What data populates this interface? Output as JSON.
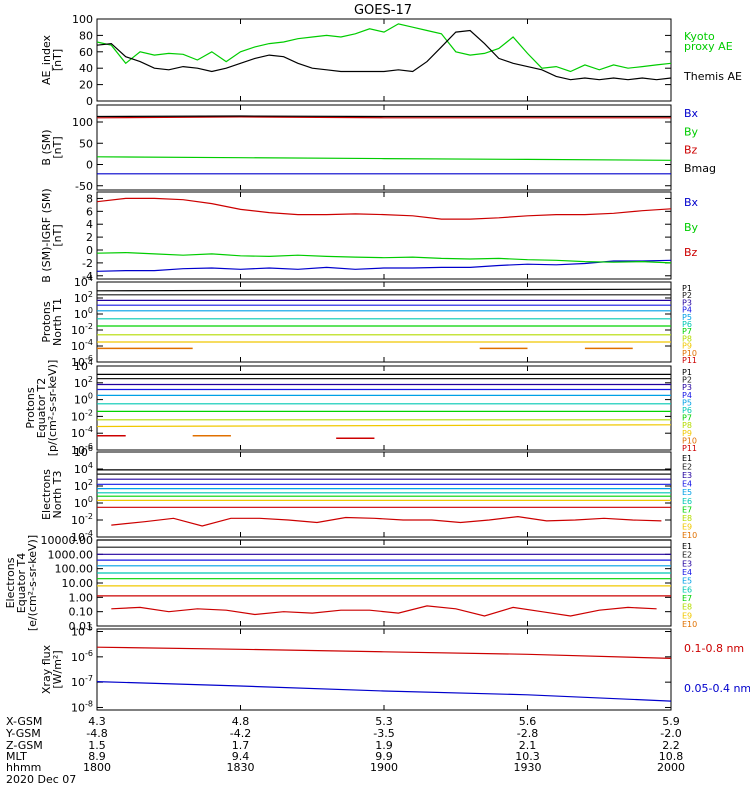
{
  "title": "GOES-17",
  "colors": {
    "black": "#000000",
    "red": "#cc0000",
    "green": "#00cc00",
    "blue": "#0000cc",
    "ch": [
      "#000000",
      "#1a1a1a",
      "#22009e",
      "#1818e6",
      "#00a0e6",
      "#00c8b4",
      "#00d200",
      "#b4dc00",
      "#f0c800",
      "#e07000",
      "#cc0000"
    ]
  },
  "chart_data": [
    {
      "type": "line",
      "panel": "ae",
      "ylabel": [
        "AE_index",
        "[nT]"
      ],
      "ylim": [
        0,
        100
      ],
      "ticks": [
        "100",
        "80",
        "60",
        "40",
        "20",
        "0"
      ],
      "tickvals": [
        100,
        80,
        60,
        40,
        20,
        0
      ],
      "x": [
        1800,
        1803,
        1806,
        1809,
        1812,
        1815,
        1818,
        1821,
        1824,
        1827,
        1830,
        1833,
        1836,
        1839,
        1842,
        1845,
        1848,
        1851,
        1854,
        1857,
        1900,
        1903,
        1906,
        1909,
        1912,
        1915,
        1918,
        1921,
        1924,
        1927,
        1930,
        1933,
        1936,
        1939,
        1942,
        1945,
        1948,
        1951,
        1954,
        1957,
        2000
      ],
      "series": [
        {
          "name": "Kyoto proxy AE",
          "color": "green",
          "values": [
            72,
            68,
            46,
            60,
            56,
            58,
            57,
            50,
            60,
            48,
            60,
            66,
            70,
            72,
            76,
            78,
            80,
            78,
            82,
            88,
            84,
            94,
            90,
            86,
            82,
            60,
            56,
            58,
            64,
            78,
            58,
            40,
            42,
            36,
            44,
            38,
            44,
            40,
            42,
            44,
            46
          ]
        },
        {
          "name": "Themis AE",
          "color": "black",
          "values": [
            68,
            70,
            54,
            48,
            40,
            38,
            42,
            40,
            36,
            40,
            46,
            52,
            56,
            54,
            46,
            40,
            38,
            36,
            36,
            36,
            36,
            38,
            36,
            48,
            66,
            84,
            86,
            70,
            52,
            46,
            42,
            38,
            30,
            26,
            28,
            26,
            28,
            26,
            28,
            26,
            28
          ]
        }
      ],
      "legend": [
        {
          "text": "Kyoto",
          "color": "green"
        },
        {
          "text": "proxy AE",
          "color": "green"
        },
        {
          "text": "Themis AE",
          "color": "black"
        }
      ]
    },
    {
      "type": "line",
      "panel": "bsm",
      "ylabel": [
        "B (SM)",
        "[nT]"
      ],
      "ylim": [
        -60,
        140
      ],
      "ticks": [
        "100",
        "50",
        "0",
        "-50"
      ],
      "tickvals": [
        100,
        50,
        0,
        -50
      ],
      "x": [
        1800,
        1830,
        1900,
        1930,
        2000
      ],
      "series": [
        {
          "name": "Bx",
          "color": "blue",
          "values": [
            -22,
            -22,
            -22,
            -22,
            -22
          ]
        },
        {
          "name": "By",
          "color": "green",
          "values": [
            18,
            16,
            14,
            12,
            10
          ]
        },
        {
          "name": "Bz",
          "color": "red",
          "values": [
            110,
            112,
            110,
            110,
            110
          ]
        },
        {
          "name": "Bmag",
          "color": "black",
          "values": [
            113,
            114,
            113,
            113,
            113
          ]
        }
      ],
      "legend": [
        {
          "text": "Bx",
          "color": "blue"
        },
        {
          "text": "By",
          "color": "green"
        },
        {
          "text": "Bz",
          "color": "red"
        },
        {
          "text": "Bmag",
          "color": "black"
        }
      ]
    },
    {
      "type": "line",
      "panel": "bigrf",
      "ylabel": [
        "B (SM)-IGRF (SM)",
        "[nT]"
      ],
      "ylim": [
        -4.5,
        9
      ],
      "ticks": [
        "8",
        "6",
        "4",
        "2",
        "0",
        "-2",
        "-4"
      ],
      "tickvals": [
        8,
        6,
        4,
        2,
        0,
        -2,
        -4
      ],
      "x": [
        1800,
        1806,
        1812,
        1818,
        1824,
        1830,
        1836,
        1842,
        1848,
        1854,
        1900,
        1906,
        1912,
        1918,
        1924,
        1930,
        1936,
        1942,
        1948,
        1954,
        2000
      ],
      "series": [
        {
          "name": "Bx",
          "color": "blue",
          "values": [
            -3.3,
            -3.2,
            -3.2,
            -2.9,
            -2.8,
            -3.0,
            -2.8,
            -3.0,
            -2.7,
            -3.0,
            -2.8,
            -2.8,
            -2.7,
            -2.7,
            -2.4,
            -2.2,
            -2.3,
            -2.1,
            -1.7,
            -1.7,
            -1.6
          ]
        },
        {
          "name": "By",
          "color": "green",
          "values": [
            -0.5,
            -0.4,
            -0.6,
            -0.8,
            -0.6,
            -0.9,
            -1.0,
            -0.8,
            -1.0,
            -1.1,
            -1.2,
            -1.1,
            -1.3,
            -1.4,
            -1.3,
            -1.5,
            -1.6,
            -1.8,
            -1.9,
            -1.8,
            -2.0
          ]
        },
        {
          "name": "Bz",
          "color": "red",
          "values": [
            7.5,
            8.0,
            8.0,
            7.8,
            7.2,
            6.3,
            5.8,
            5.5,
            5.5,
            5.6,
            5.5,
            5.3,
            4.8,
            4.8,
            5.0,
            5.3,
            5.5,
            5.5,
            5.7,
            6.1,
            6.4
          ]
        }
      ],
      "legend": [
        {
          "text": "Bx",
          "color": "blue"
        },
        {
          "text": "By",
          "color": "green"
        },
        {
          "text": "Bz",
          "color": "red"
        }
      ]
    },
    {
      "type": "line",
      "panel": "pn",
      "log": true,
      "ylabel": [
        "Protons",
        "North T1"
      ],
      "ylim": [
        -6,
        4
      ],
      "ticks": [
        [
          "10",
          "4"
        ],
        [
          "10",
          "2"
        ],
        [
          "10",
          "0"
        ],
        [
          "10",
          "-2"
        ],
        [
          "10",
          "-4"
        ],
        [
          "10",
          "-6"
        ]
      ],
      "tickvals": [
        4,
        2,
        0,
        -2,
        -4,
        -6
      ],
      "series": [
        {
          "name": "P1",
          "color": 0,
          "values": [
            2.9,
            3.1
          ]
        },
        {
          "name": "P2",
          "color": 1,
          "values": [
            2.4,
            2.4
          ]
        },
        {
          "name": "P3",
          "color": 2,
          "values": [
            1.7,
            1.7
          ]
        },
        {
          "name": "P4",
          "color": 3,
          "values": [
            1.1,
            1.1
          ]
        },
        {
          "name": "P5",
          "color": 4,
          "values": [
            0.4,
            0.4
          ]
        },
        {
          "name": "P6",
          "color": 5,
          "values": [
            -0.6,
            -0.6
          ]
        },
        {
          "name": "P7",
          "color": 6,
          "values": [
            -1.5,
            -1.5
          ]
        },
        {
          "name": "P8",
          "color": 7,
          "values": [
            -2.6,
            -2.6
          ]
        },
        {
          "name": "P9",
          "color": 8,
          "values": [
            -3.5,
            -3.5
          ]
        }
      ],
      "segments": [
        {
          "color": 9,
          "y": -4.3,
          "x": [
            1800,
            1820
          ]
        },
        {
          "color": 9,
          "y": -4.3,
          "x": [
            1920,
            1930
          ]
        },
        {
          "color": 9,
          "y": -4.3,
          "x": [
            1942,
            1952
          ]
        }
      ],
      "legend": [
        "P1",
        "P2",
        "P3",
        "P4",
        "P5",
        "P6",
        "P7",
        "P8",
        "P9",
        "P10",
        "P11"
      ]
    },
    {
      "type": "line",
      "panel": "pe",
      "log": true,
      "ylabel": [
        "Protons",
        "Equator T2",
        "[p/(cm²-s-sr-keV)]"
      ],
      "ylim": [
        -6,
        4
      ],
      "ticks": [
        [
          "10",
          "4"
        ],
        [
          "10",
          "2"
        ],
        [
          "10",
          "0"
        ],
        [
          "10",
          "-2"
        ],
        [
          "10",
          "-4"
        ],
        [
          "10",
          "-6"
        ]
      ],
      "tickvals": [
        4,
        2,
        0,
        -2,
        -4,
        -6
      ],
      "series": [
        {
          "name": "P1",
          "color": 0,
          "values": [
            3.0,
            3.0
          ]
        },
        {
          "name": "P2",
          "color": 1,
          "values": [
            2.5,
            2.5
          ]
        },
        {
          "name": "P3",
          "color": 2,
          "values": [
            1.8,
            1.8
          ]
        },
        {
          "name": "P4",
          "color": 3,
          "values": [
            1.2,
            1.2
          ]
        },
        {
          "name": "P5",
          "color": 4,
          "values": [
            0.5,
            0.5
          ]
        },
        {
          "name": "P6",
          "color": 5,
          "values": [
            -0.5,
            -0.5
          ]
        },
        {
          "name": "P7",
          "color": 6,
          "values": [
            -1.4,
            -1.4
          ]
        },
        {
          "name": "P8",
          "color": 7,
          "values": [
            -2.4,
            -2.4
          ]
        },
        {
          "name": "P9",
          "color": 8,
          "values": [
            -3.2,
            -3.0
          ]
        }
      ],
      "segments": [
        {
          "color": 10,
          "y": -4.3,
          "x": [
            1800,
            1806
          ]
        },
        {
          "color": 9,
          "y": -4.3,
          "x": [
            1820,
            1828
          ]
        },
        {
          "color": 10,
          "y": -4.6,
          "x": [
            1850,
            1858
          ]
        }
      ],
      "legend": [
        "P1",
        "P2",
        "P3",
        "P4",
        "P5",
        "P6",
        "P7",
        "P8",
        "P9",
        "P10",
        "P11"
      ]
    },
    {
      "type": "line",
      "panel": "en",
      "log": true,
      "ylabel": [
        "Electrons",
        "North T3"
      ],
      "ylim": [
        -4,
        6
      ],
      "ticks": [
        [
          "10",
          "6"
        ],
        [
          "10",
          "4"
        ],
        [
          "10",
          "2"
        ],
        [
          "10",
          "0"
        ],
        [
          "10",
          "-2"
        ],
        [
          "10",
          "-4"
        ]
      ],
      "tickvals": [
        6,
        4,
        2,
        0,
        -2,
        -4
      ],
      "series": [
        {
          "name": "E1",
          "color": 0,
          "values": [
            3.9,
            3.9
          ]
        },
        {
          "name": "E2",
          "color": 1,
          "values": [
            3.4,
            3.4
          ]
        },
        {
          "name": "E3",
          "color": 2,
          "values": [
            2.8,
            2.8
          ]
        },
        {
          "name": "E4",
          "color": 3,
          "values": [
            2.2,
            2.2
          ]
        },
        {
          "name": "E5",
          "color": 4,
          "values": [
            1.7,
            1.7
          ]
        },
        {
          "name": "E6",
          "color": 5,
          "values": [
            1.2,
            1.2
          ]
        },
        {
          "name": "E7",
          "color": 6,
          "values": [
            0.8,
            0.8
          ]
        },
        {
          "name": "E8",
          "color": 8,
          "values": [
            0.3,
            0.3
          ]
        },
        {
          "name": "E9",
          "color": 10,
          "values": [
            -0.5,
            -0.5
          ]
        }
      ],
      "noisy": {
        "color": 10,
        "x": [
          1803,
          1810,
          1816,
          1822,
          1828,
          1834,
          1840,
          1846,
          1852,
          1858,
          1904,
          1910,
          1916,
          1922,
          1928,
          1934,
          1940,
          1946,
          1952,
          1958
        ],
        "values": [
          -2.6,
          -2.2,
          -1.8,
          -2.7,
          -1.8,
          -1.8,
          -2.0,
          -2.3,
          -1.7,
          -1.8,
          -2.0,
          -2.0,
          -2.3,
          -2.0,
          -1.6,
          -2.1,
          -2.0,
          -1.8,
          -2.0,
          -2.1
        ]
      },
      "legend": [
        "E1",
        "E2",
        "E3",
        "E4",
        "E5",
        "E6",
        "E7",
        "E8",
        "E9",
        "E10"
      ]
    },
    {
      "type": "line",
      "panel": "ee",
      "log": true,
      "ylabel": [
        "Electrons",
        "Equator T4",
        "[e/(cm²-s-sr-keV)]"
      ],
      "ylim": [
        -2,
        4
      ],
      "ticks": [
        "10000.00",
        "1000.00",
        "100.00",
        "10.00",
        "1.00",
        "0.10",
        "0.01"
      ],
      "tickvals": [
        4,
        3,
        2,
        1,
        0,
        -1,
        -2
      ],
      "series": [
        {
          "name": "E1",
          "color": 0,
          "values": [
            4.0,
            4.0
          ]
        },
        {
          "name": "E2",
          "color": 1,
          "values": [
            3.5,
            3.5
          ]
        },
        {
          "name": "E3",
          "color": 2,
          "values": [
            3.0,
            3.0
          ]
        },
        {
          "name": "E4",
          "color": 3,
          "values": [
            2.6,
            2.6
          ]
        },
        {
          "name": "E5",
          "color": 4,
          "values": [
            2.2,
            2.2
          ]
        },
        {
          "name": "E6",
          "color": 5,
          "values": [
            1.7,
            1.7
          ]
        },
        {
          "name": "E7",
          "color": 6,
          "values": [
            1.3,
            1.3
          ]
        },
        {
          "name": "E8",
          "color": 8,
          "values": [
            0.8,
            0.8
          ]
        },
        {
          "name": "E9",
          "color": 10,
          "values": [
            0.1,
            0.1
          ]
        }
      ],
      "noisy": {
        "color": 10,
        "x": [
          1803,
          1809,
          1815,
          1821,
          1827,
          1833,
          1839,
          1845,
          1851,
          1857,
          1903,
          1909,
          1915,
          1921,
          1927,
          1933,
          1939,
          1945,
          1951,
          1957
        ],
        "values": [
          -0.8,
          -0.7,
          -1.0,
          -0.8,
          -0.9,
          -1.2,
          -1.0,
          -1.1,
          -0.9,
          -0.9,
          -1.1,
          -0.6,
          -0.8,
          -1.3,
          -0.7,
          -1.0,
          -1.3,
          -0.9,
          -0.7,
          -0.8
        ]
      },
      "legend": [
        "E1",
        "E2",
        "E3",
        "E4",
        "E5",
        "E6",
        "E7",
        "E8",
        "E9",
        "E10"
      ]
    },
    {
      "type": "line",
      "panel": "xray",
      "log": true,
      "ylabel": [
        "Xray flux",
        "[W/m²]"
      ],
      "ylim": [
        -8.1,
        -4.9
      ],
      "ticks": [
        [
          "10",
          "-5"
        ],
        [
          "10",
          "-6"
        ],
        [
          "10",
          "-7"
        ],
        [
          "10",
          "-8"
        ]
      ],
      "tickvals": [
        -5,
        -6,
        -7,
        -8
      ],
      "x": [
        1800,
        1830,
        1900,
        1930,
        2000
      ],
      "series": [
        {
          "name": "0.1-0.8 nm",
          "color": "red",
          "values": [
            -5.62,
            -5.7,
            -5.8,
            -5.9,
            -6.06
          ]
        },
        {
          "name": "0.05-0.4 nm",
          "color": "blue",
          "values": [
            -6.98,
            -7.15,
            -7.35,
            -7.5,
            -7.75
          ]
        }
      ],
      "legend": [
        {
          "text": "0.1-0.8 nm",
          "color": "red"
        },
        {
          "text": "0.05-0.4 nm",
          "color": "blue"
        }
      ]
    }
  ],
  "xaxis": {
    "range": [
      1800,
      2000
    ],
    "tickvals": [
      1800,
      1830,
      1900,
      1930,
      2000
    ],
    "labels": [
      "X-GSM",
      "Y-GSM",
      "Z-GSM",
      "MLT",
      "hhmm"
    ],
    "rows": [
      [
        "4.3",
        "4.8",
        "5.3",
        "5.6",
        "5.9"
      ],
      [
        "-4.8",
        "-4.2",
        "-3.5",
        "-2.8",
        "-2.0"
      ],
      [
        "1.5",
        "1.7",
        "1.9",
        "2.1",
        "2.2"
      ],
      [
        "8.9",
        "9.4",
        "9.9",
        "10.3",
        "10.8"
      ],
      [
        "1800",
        "1830",
        "1900",
        "1930",
        "2000"
      ]
    ],
    "date": "2020 Dec 07"
  }
}
